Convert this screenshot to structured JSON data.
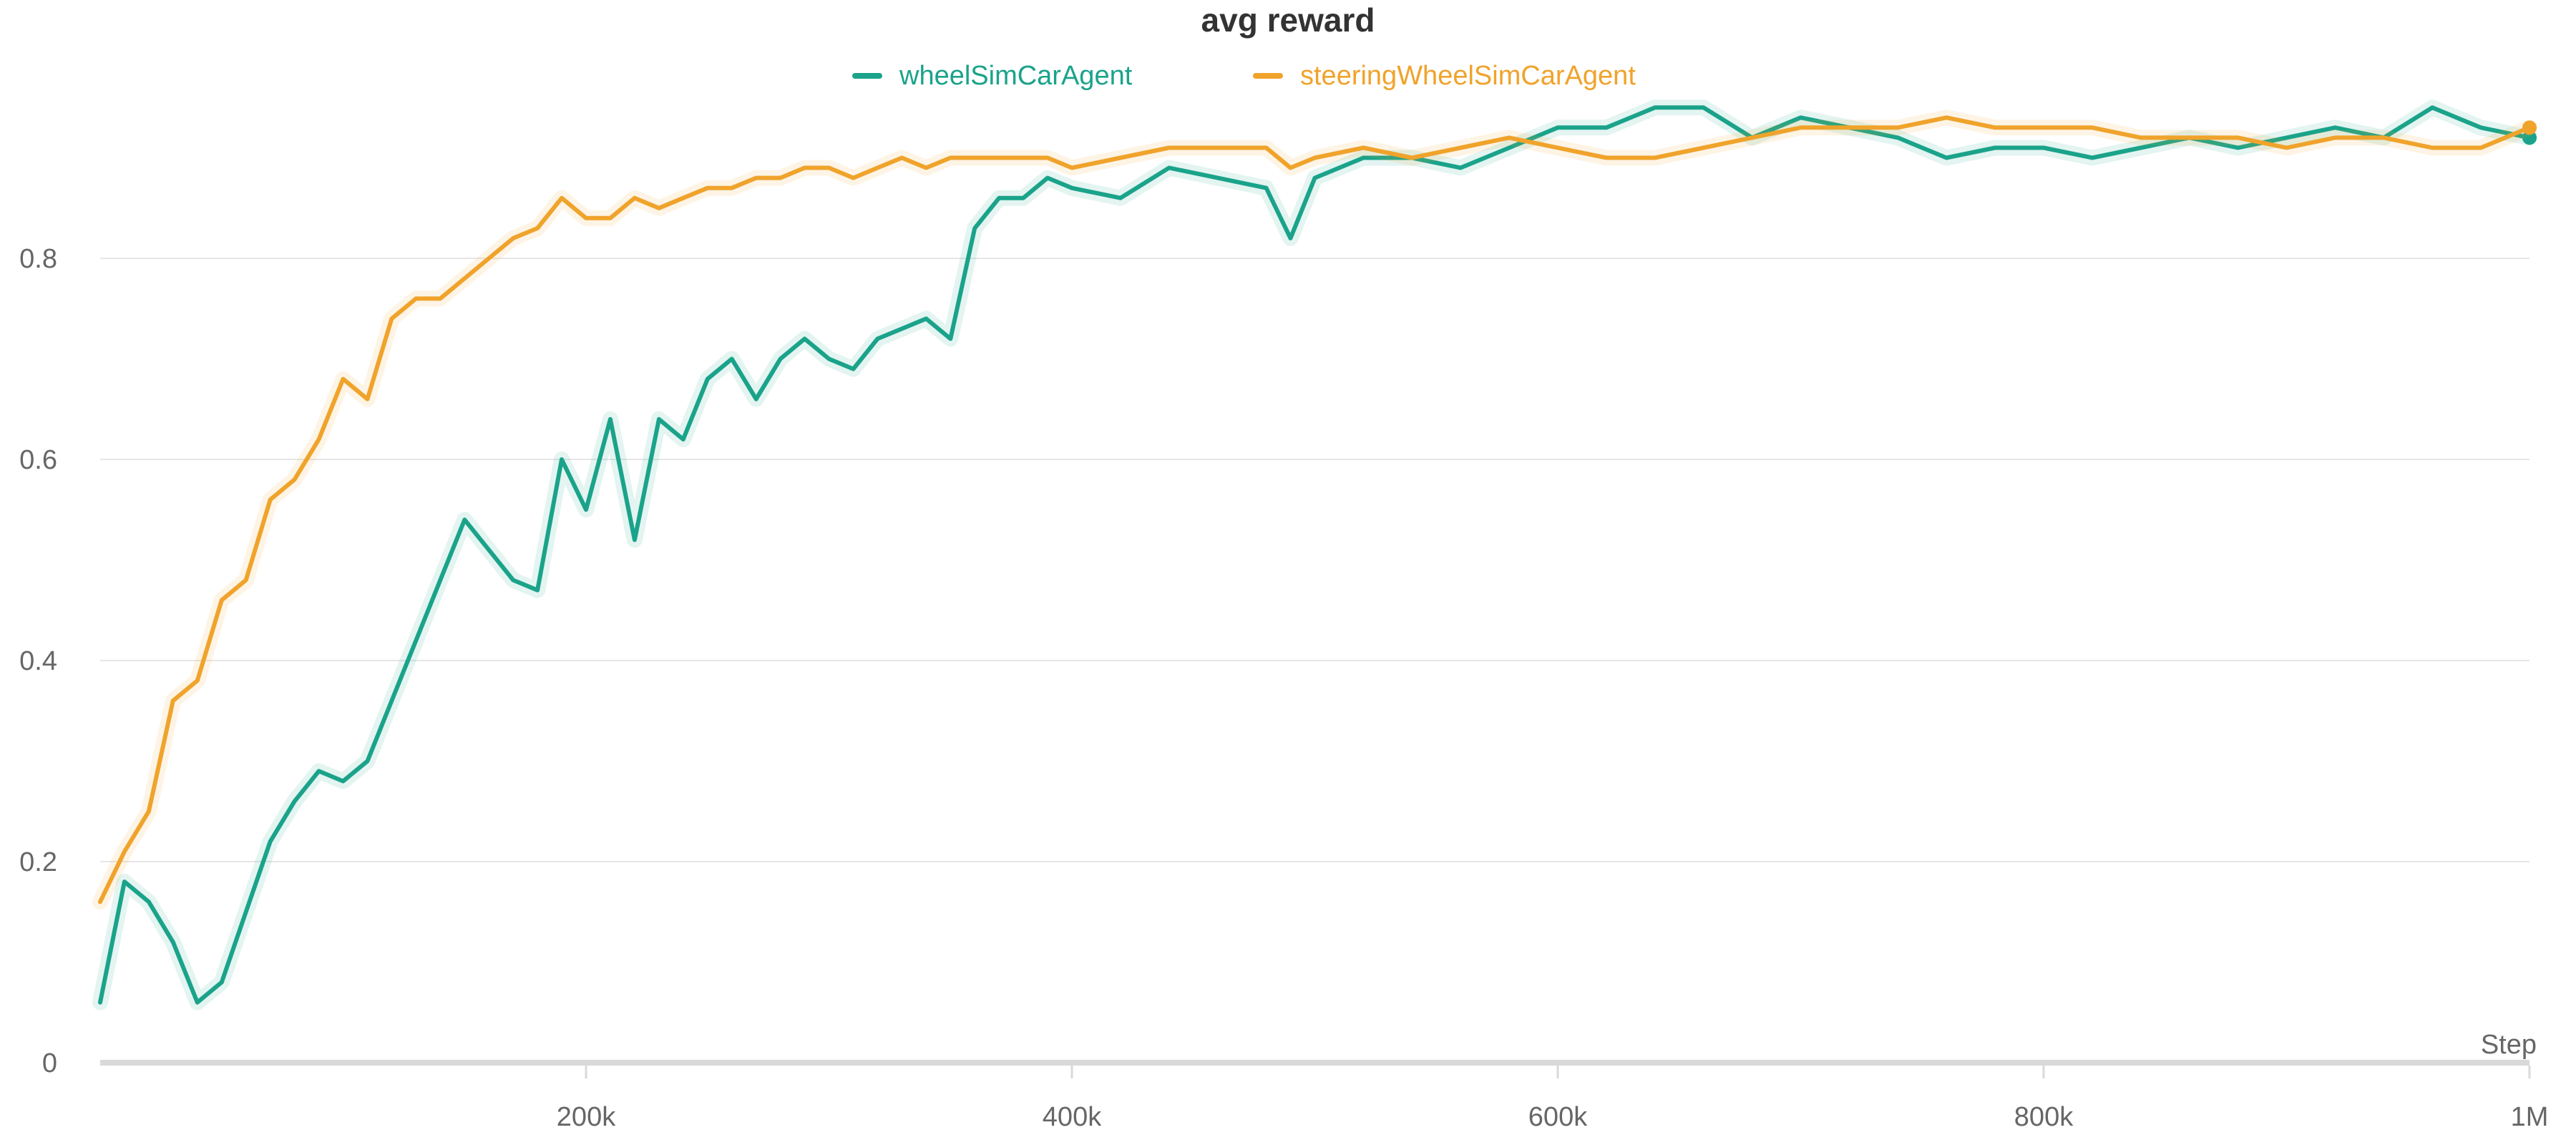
{
  "chart_data": {
    "type": "line",
    "title": "avg reward",
    "xlabel": "Step",
    "ylabel": "",
    "xlim": [
      0,
      1000000
    ],
    "ylim": [
      0,
      1.0
    ],
    "grid": true,
    "legend_position": "top-center",
    "x_ticks": [
      {
        "value": 200000,
        "label": "200k"
      },
      {
        "value": 400000,
        "label": "400k"
      },
      {
        "value": 600000,
        "label": "600k"
      },
      {
        "value": 800000,
        "label": "800k"
      },
      {
        "value": 1000000,
        "label": "1M"
      }
    ],
    "y_ticks": [
      {
        "value": 0,
        "label": "0"
      },
      {
        "value": 0.2,
        "label": "0.2"
      },
      {
        "value": 0.4,
        "label": "0.4"
      },
      {
        "value": 0.6,
        "label": "0.6"
      },
      {
        "value": 0.8,
        "label": "0.8"
      }
    ],
    "series": [
      {
        "name": "wheelSimCarAgent",
        "color": "#1aa38a",
        "x": [
          0,
          10000,
          20000,
          30000,
          40000,
          50000,
          60000,
          70000,
          80000,
          90000,
          100000,
          110000,
          120000,
          130000,
          140000,
          150000,
          160000,
          170000,
          180000,
          190000,
          200000,
          210000,
          220000,
          230000,
          240000,
          250000,
          260000,
          270000,
          280000,
          290000,
          300000,
          310000,
          320000,
          330000,
          340000,
          350000,
          360000,
          370000,
          380000,
          390000,
          400000,
          420000,
          440000,
          460000,
          480000,
          490000,
          500000,
          520000,
          540000,
          560000,
          580000,
          600000,
          620000,
          640000,
          660000,
          680000,
          700000,
          720000,
          740000,
          760000,
          780000,
          800000,
          820000,
          840000,
          860000,
          880000,
          900000,
          920000,
          940000,
          960000,
          980000,
          1000000
        ],
        "values": [
          0.06,
          0.18,
          0.16,
          0.12,
          0.06,
          0.08,
          0.15,
          0.22,
          0.26,
          0.29,
          0.28,
          0.3,
          0.36,
          0.42,
          0.48,
          0.54,
          0.51,
          0.48,
          0.47,
          0.6,
          0.55,
          0.64,
          0.52,
          0.64,
          0.62,
          0.68,
          0.7,
          0.66,
          0.7,
          0.72,
          0.7,
          0.69,
          0.72,
          0.73,
          0.74,
          0.72,
          0.83,
          0.86,
          0.86,
          0.88,
          0.87,
          0.86,
          0.89,
          0.88,
          0.87,
          0.82,
          0.88,
          0.9,
          0.9,
          0.89,
          0.91,
          0.93,
          0.93,
          0.95,
          0.95,
          0.92,
          0.94,
          0.93,
          0.92,
          0.9,
          0.91,
          0.91,
          0.9,
          0.91,
          0.92,
          0.91,
          0.92,
          0.93,
          0.92,
          0.95,
          0.93,
          0.92
        ]
      },
      {
        "name": "steeringWheelSimCarAgent",
        "color": "#f0a32b",
        "x": [
          0,
          10000,
          20000,
          30000,
          40000,
          50000,
          60000,
          70000,
          80000,
          90000,
          100000,
          110000,
          120000,
          130000,
          140000,
          150000,
          160000,
          170000,
          180000,
          190000,
          200000,
          210000,
          220000,
          230000,
          240000,
          250000,
          260000,
          270000,
          280000,
          290000,
          300000,
          310000,
          320000,
          330000,
          340000,
          350000,
          360000,
          370000,
          380000,
          390000,
          400000,
          420000,
          440000,
          460000,
          480000,
          490000,
          500000,
          520000,
          540000,
          560000,
          580000,
          600000,
          620000,
          640000,
          660000,
          680000,
          700000,
          720000,
          740000,
          760000,
          780000,
          800000,
          820000,
          840000,
          860000,
          880000,
          900000,
          920000,
          940000,
          960000,
          980000,
          1000000
        ],
        "values": [
          0.16,
          0.21,
          0.25,
          0.36,
          0.38,
          0.46,
          0.48,
          0.56,
          0.58,
          0.62,
          0.68,
          0.66,
          0.74,
          0.76,
          0.76,
          0.78,
          0.8,
          0.82,
          0.83,
          0.86,
          0.84,
          0.84,
          0.86,
          0.85,
          0.86,
          0.87,
          0.87,
          0.88,
          0.88,
          0.89,
          0.89,
          0.88,
          0.89,
          0.9,
          0.89,
          0.9,
          0.9,
          0.9,
          0.9,
          0.9,
          0.89,
          0.9,
          0.91,
          0.91,
          0.91,
          0.89,
          0.9,
          0.91,
          0.9,
          0.91,
          0.92,
          0.91,
          0.9,
          0.9,
          0.91,
          0.92,
          0.93,
          0.93,
          0.93,
          0.94,
          0.93,
          0.93,
          0.93,
          0.92,
          0.92,
          0.92,
          0.91,
          0.92,
          0.92,
          0.91,
          0.91,
          0.93
        ]
      }
    ]
  }
}
